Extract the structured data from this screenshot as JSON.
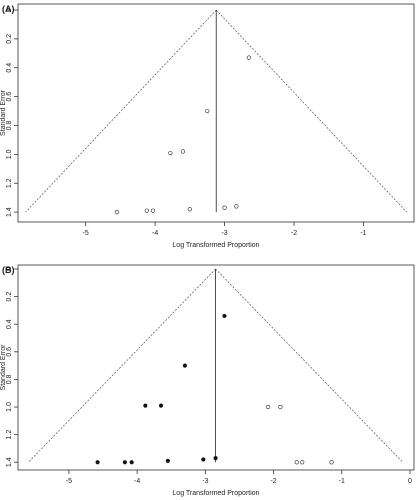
{
  "chart_data": [
    {
      "type": "scatter",
      "panel_label": "(A)",
      "xlabel": "Log Transformed Proportion",
      "ylabel": "Standard Error",
      "xticks": [
        "-5",
        "-4",
        "-3",
        "-2",
        "-1"
      ],
      "yticks": [
        "0",
        "0.2",
        "0.4",
        "0.6",
        "0.8",
        "1.0",
        "1.2",
        "1.4"
      ],
      "xlim": [
        -5.83,
        -0.33
      ],
      "ylim": [
        0,
        1.42
      ],
      "y_inverted": true,
      "funnel_center": -3.12,
      "funnel_base_se": 1.4,
      "series": [
        {
          "filled": false,
          "points": [
            {
              "x": -2.65,
              "y": 0.33
            },
            {
              "x": -3.25,
              "y": 0.7
            },
            {
              "x": -3.6,
              "y": 0.98
            },
            {
              "x": -3.78,
              "y": 0.99
            },
            {
              "x": -4.55,
              "y": 1.4
            },
            {
              "x": -4.12,
              "y": 1.39
            },
            {
              "x": -4.03,
              "y": 1.39
            },
            {
              "x": -3.5,
              "y": 1.38
            },
            {
              "x": -3.0,
              "y": 1.37
            },
            {
              "x": -2.83,
              "y": 1.36
            }
          ]
        }
      ]
    },
    {
      "type": "scatter",
      "panel_label": "(B)",
      "xlabel": "Log Transformed Proportion",
      "ylabel": "Standard Error",
      "xticks": [
        "-5",
        "-4",
        "-3",
        "-2",
        "-1",
        "0"
      ],
      "yticks": [
        "0",
        "0.2",
        "0.4",
        "0.6",
        "0.8",
        "1.0",
        "1.2",
        "1.4"
      ],
      "xlim": [
        -5.6,
        0.0
      ],
      "ylim": [
        0,
        1.42
      ],
      "y_inverted": true,
      "funnel_center": -2.85,
      "funnel_base_se": 1.4,
      "series": [
        {
          "filled": true,
          "points": [
            {
              "x": -2.72,
              "y": 0.34
            },
            {
              "x": -3.3,
              "y": 0.7
            },
            {
              "x": -3.65,
              "y": 0.99
            },
            {
              "x": -3.88,
              "y": 0.99
            },
            {
              "x": -4.58,
              "y": 1.4
            },
            {
              "x": -4.18,
              "y": 1.4
            },
            {
              "x": -4.08,
              "y": 1.4
            },
            {
              "x": -3.55,
              "y": 1.39
            },
            {
              "x": -3.03,
              "y": 1.38
            },
            {
              "x": -2.85,
              "y": 1.37
            }
          ]
        },
        {
          "filled": false,
          "points": [
            {
              "x": -2.08,
              "y": 1.0
            },
            {
              "x": -1.9,
              "y": 1.0
            },
            {
              "x": -1.66,
              "y": 1.4
            },
            {
              "x": -1.58,
              "y": 1.4
            },
            {
              "x": -1.15,
              "y": 1.4
            }
          ]
        }
      ]
    }
  ]
}
